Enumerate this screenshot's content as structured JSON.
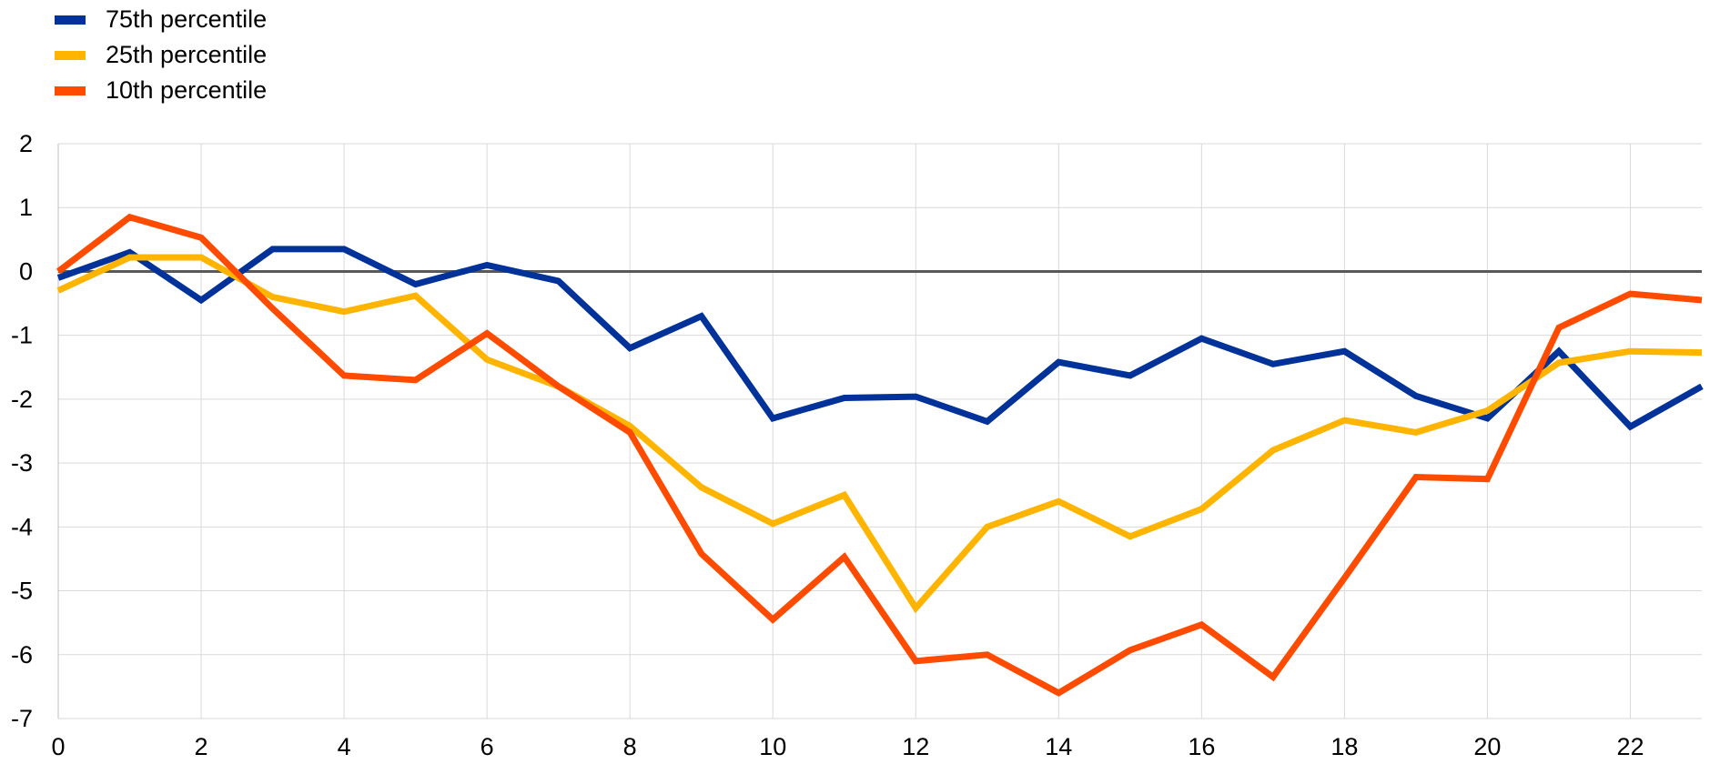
{
  "chart_data": {
    "type": "line",
    "title": "",
    "xlabel": "",
    "ylabel": "",
    "xlim": [
      0,
      23
    ],
    "ylim": [
      -7,
      2
    ],
    "xticks": [
      0,
      2,
      4,
      6,
      8,
      10,
      12,
      14,
      16,
      18,
      20,
      22
    ],
    "yticks": [
      2,
      1,
      0,
      -1,
      -2,
      -3,
      -4,
      -5,
      -6,
      -7
    ],
    "grid": true,
    "legend_position": "top-left",
    "x": [
      0,
      1,
      2,
      3,
      4,
      5,
      6,
      7,
      8,
      9,
      10,
      11,
      12,
      13,
      14,
      15,
      16,
      17,
      18,
      19,
      20,
      21,
      22,
      23
    ],
    "series": [
      {
        "name": "75th percentile",
        "color": "#003299",
        "values": [
          -0.1,
          0.3,
          -0.45,
          0.35,
          0.35,
          -0.2,
          0.1,
          -0.15,
          -1.2,
          -0.7,
          -2.3,
          -1.98,
          -1.96,
          -2.35,
          -1.42,
          -1.63,
          -1.05,
          -1.45,
          -1.25,
          -1.95,
          -2.3,
          -1.25,
          -2.43,
          -1.8
        ]
      },
      {
        "name": "25th percentile",
        "color": "#FFB400",
        "values": [
          -0.3,
          0.22,
          0.22,
          -0.4,
          -0.63,
          -0.38,
          -1.38,
          -1.8,
          -2.42,
          -3.38,
          -3.95,
          -3.5,
          -5.27,
          -4.0,
          -3.6,
          -4.15,
          -3.72,
          -2.8,
          -2.33,
          -2.52,
          -2.18,
          -1.43,
          -1.25,
          -1.27
        ]
      },
      {
        "name": "10th percentile",
        "color": "#FF4B00",
        "values": [
          0.0,
          0.85,
          0.53,
          -0.58,
          -1.63,
          -1.7,
          -0.97,
          -1.8,
          -2.52,
          -4.42,
          -5.45,
          -4.47,
          -6.1,
          -6.0,
          -6.6,
          -5.93,
          -5.53,
          -6.35,
          -4.8,
          -3.22,
          -3.25,
          -0.88,
          -0.35,
          -0.45
        ]
      }
    ]
  }
}
